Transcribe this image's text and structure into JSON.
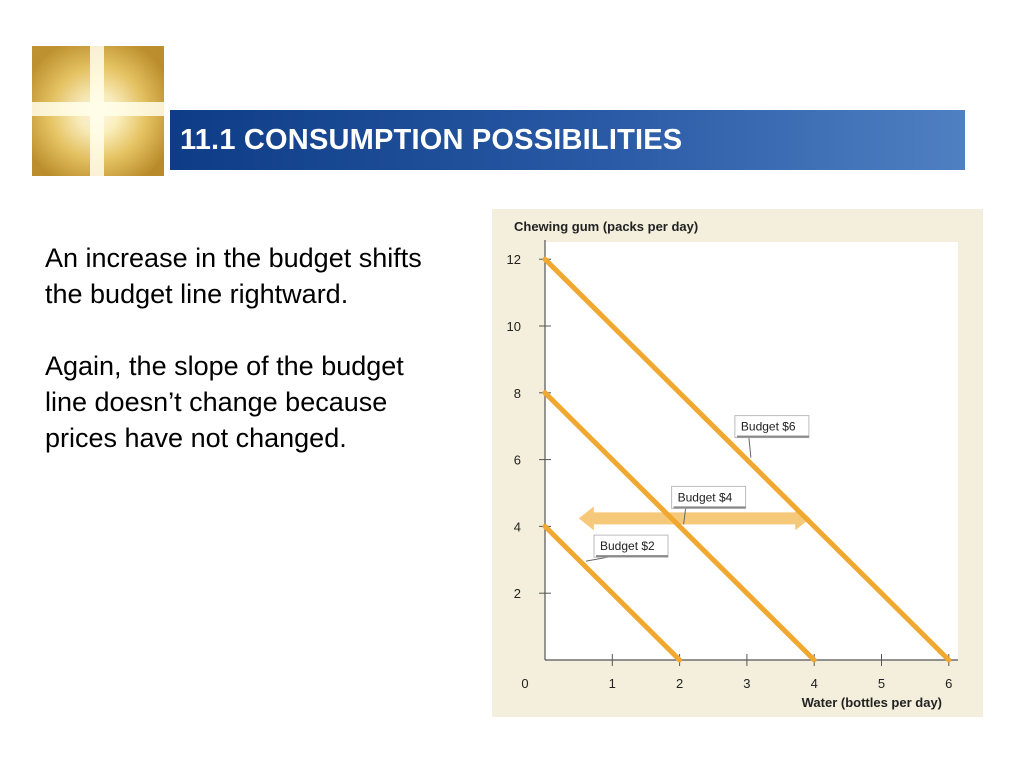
{
  "header": {
    "title": "11.1 CONSUMPTION POSSIBILITIES"
  },
  "body": {
    "paragraphs": [
      "An increase in the budget shifts the budget line rightward.",
      "Again, the slope of the budget line doesn’t change because prices have not changed."
    ]
  },
  "colors": {
    "title_bar": "#1f4c98",
    "budget_line": "#f0a830",
    "arrow": "#f6c87a",
    "chart_background": "#f3efdc"
  },
  "chart_data": {
    "type": "line",
    "ylabel": "Chewing gum (packs per day)",
    "xlabel": "Water (bottles per day)",
    "xlim": [
      0,
      6
    ],
    "ylim": [
      0,
      12
    ],
    "x_ticks": [
      "0",
      "1",
      "2",
      "3",
      "4",
      "5",
      "6"
    ],
    "y_ticks": [
      "2",
      "4",
      "6",
      "8",
      "10",
      "12"
    ],
    "grid": false,
    "series": [
      {
        "name": "Budget $2",
        "x": [
          0,
          2
        ],
        "y": [
          4,
          0
        ]
      },
      {
        "name": "Budget $4",
        "x": [
          0,
          4
        ],
        "y": [
          8,
          0
        ]
      },
      {
        "name": "Budget $6",
        "x": [
          0,
          6
        ],
        "y": [
          12,
          0
        ]
      }
    ],
    "annotations": {
      "shift_arrow": {
        "from": [
          0.8,
          4
        ],
        "to": [
          4.0,
          4
        ],
        "direction": "both"
      }
    }
  }
}
